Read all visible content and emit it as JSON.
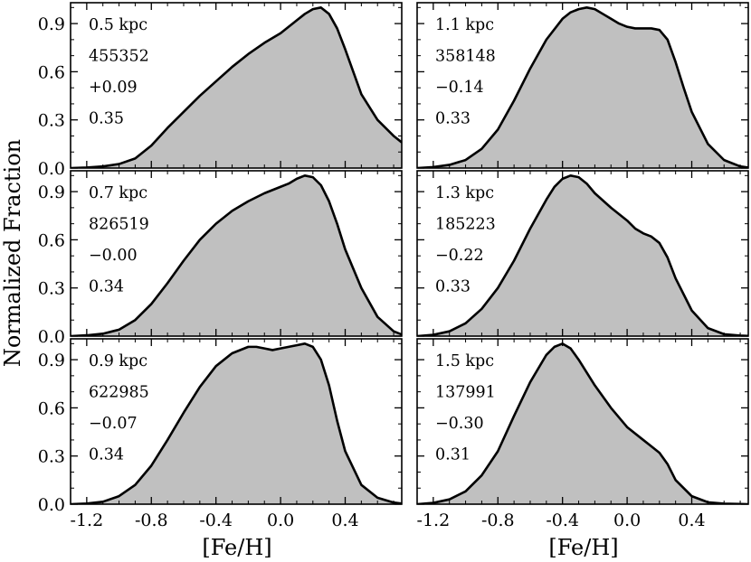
{
  "chart_data": {
    "type": "area",
    "title": "",
    "ylabel": "Normalized Fraction",
    "xlabel": "[Fe/H]",
    "xlim": [
      -1.3,
      0.75
    ],
    "ylim": [
      0,
      1.03
    ],
    "x_ticks": [
      -1.2,
      -0.8,
      -0.4,
      0.0,
      0.4
    ],
    "x_tick_labels_left": [
      "-1.2",
      "-0.8",
      "-0.4",
      "0.0",
      "0.4"
    ],
    "x_tick_labels_right": [
      "-1.2",
      "-0.8",
      "-0.4",
      "0.0",
      "0.4"
    ],
    "y_ticks": [
      0.0,
      0.3,
      0.6,
      0.9
    ],
    "y_tick_labels": [
      "0.0",
      "0.3",
      "0.6",
      "0.9"
    ],
    "fill_color": "#c0c0c0",
    "line_color": "#000000",
    "panels": [
      {
        "label": "0.5 kpc",
        "count": "455352",
        "mean": "+0.09",
        "dispersion": "0.35",
        "x": [
          -1.3,
          -1.2,
          -1.1,
          -1.0,
          -0.9,
          -0.8,
          -0.7,
          -0.6,
          -0.5,
          -0.4,
          -0.3,
          -0.2,
          -0.1,
          0.0,
          0.1,
          0.15,
          0.2,
          0.25,
          0.3,
          0.35,
          0.4,
          0.45,
          0.5,
          0.6,
          0.7,
          0.75
        ],
        "y": [
          0.0,
          0.003,
          0.01,
          0.025,
          0.06,
          0.14,
          0.25,
          0.35,
          0.45,
          0.54,
          0.63,
          0.71,
          0.78,
          0.84,
          0.92,
          0.96,
          0.99,
          1.0,
          0.96,
          0.87,
          0.74,
          0.6,
          0.46,
          0.3,
          0.2,
          0.16
        ]
      },
      {
        "label": "1.1 kpc",
        "count": "358148",
        "mean": "−0.14",
        "dispersion": "0.33",
        "x": [
          -1.3,
          -1.2,
          -1.1,
          -1.0,
          -0.9,
          -0.8,
          -0.7,
          -0.6,
          -0.5,
          -0.4,
          -0.35,
          -0.3,
          -0.25,
          -0.2,
          -0.15,
          -0.1,
          -0.05,
          0.0,
          0.05,
          0.1,
          0.15,
          0.2,
          0.25,
          0.3,
          0.35,
          0.4,
          0.5,
          0.6,
          0.7,
          0.75
        ],
        "y": [
          0.0,
          0.006,
          0.02,
          0.05,
          0.12,
          0.24,
          0.42,
          0.62,
          0.8,
          0.93,
          0.97,
          0.99,
          1.0,
          0.99,
          0.96,
          0.93,
          0.9,
          0.88,
          0.87,
          0.87,
          0.87,
          0.86,
          0.8,
          0.66,
          0.5,
          0.35,
          0.15,
          0.05,
          0.01,
          0.003
        ]
      },
      {
        "label": "0.7 kpc",
        "count": "826519",
        "mean": "−0.00",
        "dispersion": "0.34",
        "x": [
          -1.3,
          -1.2,
          -1.1,
          -1.0,
          -0.9,
          -0.8,
          -0.7,
          -0.6,
          -0.5,
          -0.4,
          -0.3,
          -0.2,
          -0.1,
          0.0,
          0.05,
          0.1,
          0.15,
          0.2,
          0.25,
          0.3,
          0.35,
          0.4,
          0.5,
          0.6,
          0.7,
          0.75
        ],
        "y": [
          0.0,
          0.005,
          0.015,
          0.04,
          0.1,
          0.2,
          0.33,
          0.47,
          0.6,
          0.7,
          0.78,
          0.84,
          0.89,
          0.93,
          0.95,
          0.98,
          1.0,
          0.99,
          0.94,
          0.84,
          0.7,
          0.54,
          0.3,
          0.12,
          0.03,
          0.01
        ]
      },
      {
        "label": "1.3 kpc",
        "count": "185223",
        "mean": "−0.22",
        "dispersion": "0.33",
        "x": [
          -1.3,
          -1.2,
          -1.1,
          -1.0,
          -0.9,
          -0.8,
          -0.7,
          -0.6,
          -0.5,
          -0.45,
          -0.4,
          -0.35,
          -0.3,
          -0.25,
          -0.2,
          -0.1,
          0.0,
          0.05,
          0.1,
          0.15,
          0.2,
          0.25,
          0.3,
          0.4,
          0.5,
          0.6,
          0.7,
          0.75
        ],
        "y": [
          0.0,
          0.008,
          0.03,
          0.08,
          0.17,
          0.3,
          0.47,
          0.67,
          0.85,
          0.93,
          0.98,
          1.0,
          0.99,
          0.95,
          0.89,
          0.8,
          0.72,
          0.67,
          0.64,
          0.62,
          0.58,
          0.49,
          0.36,
          0.16,
          0.05,
          0.012,
          0.003,
          0.001
        ]
      },
      {
        "label": "0.9 kpc",
        "count": "622985",
        "mean": "−0.07",
        "dispersion": "0.34",
        "x": [
          -1.3,
          -1.2,
          -1.1,
          -1.0,
          -0.9,
          -0.8,
          -0.7,
          -0.6,
          -0.5,
          -0.4,
          -0.3,
          -0.2,
          -0.15,
          -0.1,
          -0.05,
          0.0,
          0.05,
          0.1,
          0.15,
          0.2,
          0.25,
          0.3,
          0.35,
          0.4,
          0.5,
          0.6,
          0.7,
          0.75
        ],
        "y": [
          0.0,
          0.004,
          0.015,
          0.05,
          0.12,
          0.24,
          0.4,
          0.57,
          0.73,
          0.86,
          0.94,
          0.98,
          0.98,
          0.97,
          0.96,
          0.97,
          0.98,
          0.99,
          1.0,
          0.98,
          0.9,
          0.74,
          0.52,
          0.33,
          0.12,
          0.04,
          0.01,
          0.004
        ]
      },
      {
        "label": "1.5 kpc",
        "count": "137991",
        "mean": "−0.30",
        "dispersion": "0.31",
        "x": [
          -1.3,
          -1.2,
          -1.1,
          -1.0,
          -0.9,
          -0.8,
          -0.7,
          -0.6,
          -0.5,
          -0.45,
          -0.4,
          -0.35,
          -0.3,
          -0.2,
          -0.1,
          0.0,
          0.1,
          0.15,
          0.2,
          0.25,
          0.3,
          0.4,
          0.5,
          0.6,
          0.7,
          0.75
        ],
        "y": [
          0.0,
          0.008,
          0.03,
          0.08,
          0.18,
          0.33,
          0.55,
          0.76,
          0.93,
          0.98,
          1.0,
          0.97,
          0.9,
          0.74,
          0.6,
          0.48,
          0.4,
          0.36,
          0.32,
          0.25,
          0.15,
          0.05,
          0.012,
          0.003,
          0.001,
          0.0
        ]
      }
    ]
  }
}
